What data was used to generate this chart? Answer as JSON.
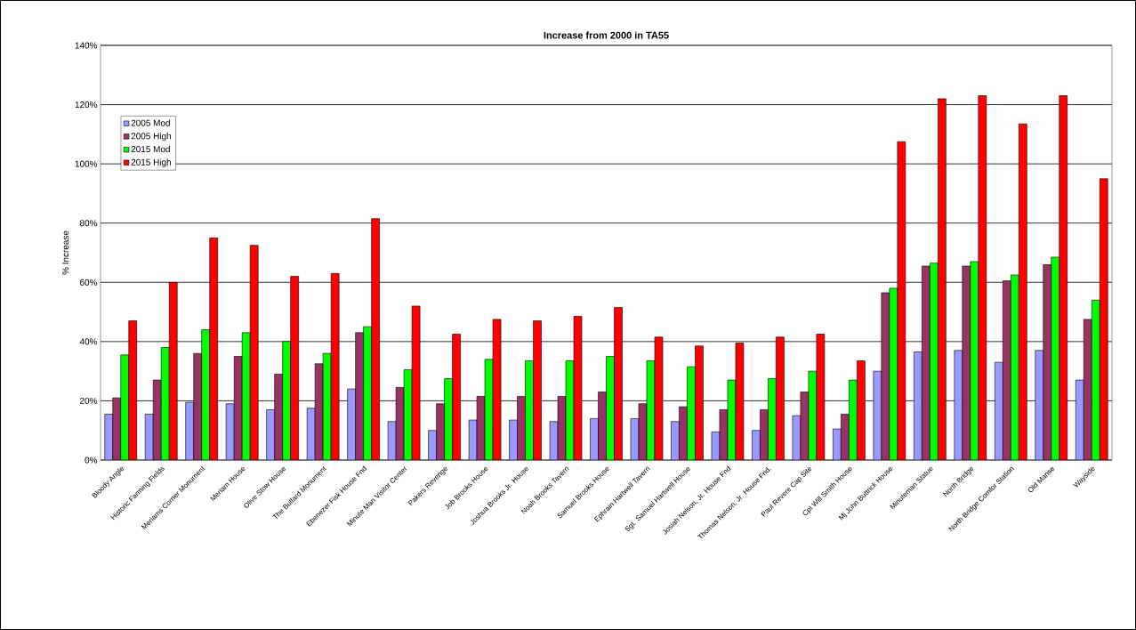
{
  "chart_data": {
    "type": "bar",
    "title": "Increase from 2000 in TA55",
    "ylabel": "% Increase",
    "categories": [
      "Bloody Angle",
      "Historic Farming Fields",
      "Meriams Corner Monument",
      "Meriam House",
      "Olive Stow House",
      "The Bulfard Monument",
      "Ebenezer Fisk House Fnd",
      "Minute Man Visitor Center",
      "Pakers Revenge",
      "Job Brooks House",
      "Joshua Brooks Jr. House",
      "Noah Brooks Tavern",
      "Samuel Brooks House",
      "Ephrain Hartwell Tavern",
      "Sgt. Samuel Hartwell House",
      "Josiah Nelson, Jr. House Fnd",
      "Thomas Nelson, Jr. House Fnd.",
      "Paul Revere Cap Site",
      "Cpt Will Smith House",
      "Mj John Buttrick House",
      "Minuteman Statue",
      "North Bridge",
      "North Bridge Comfor Station",
      "Old Manse",
      "Wayside"
    ],
    "series": [
      {
        "name": "2005 Mod",
        "color": "#9999ff",
        "values": [
          15.5,
          15.5,
          19.5,
          19,
          17,
          17.5,
          24,
          13,
          10,
          13.5,
          13.5,
          13,
          14,
          14,
          13,
          9.5,
          10,
          15,
          10.5,
          30,
          36.5,
          37,
          33,
          37,
          27
        ]
      },
      {
        "name": "2005 High",
        "color": "#993366",
        "values": [
          21,
          27,
          36,
          35,
          29,
          32.5,
          43,
          24.5,
          19,
          21.5,
          21.5,
          21.5,
          23,
          19,
          18,
          17,
          17,
          23,
          15.5,
          56.5,
          65.5,
          65.5,
          60.5,
          66,
          47.5
        ]
      },
      {
        "name": "2015 Mod",
        "color": "#00ff00",
        "values": [
          35.5,
          38,
          44,
          43,
          40,
          36,
          45,
          30.5,
          27.5,
          34,
          33.5,
          33.5,
          35,
          33.5,
          31.5,
          27,
          27.5,
          30,
          27,
          58,
          66.5,
          67,
          62.5,
          68.5,
          54
        ]
      },
      {
        "name": "2015 High",
        "color": "#ff0000",
        "values": [
          47,
          60,
          75,
          72.5,
          62,
          63,
          81.5,
          52,
          42.5,
          47.5,
          47,
          48.5,
          51.5,
          41.5,
          38.5,
          39.5,
          41.5,
          42.5,
          33.5,
          107.5,
          122,
          123,
          113.5,
          123,
          95
        ]
      }
    ],
    "ylim": [
      0,
      140
    ],
    "yticks": [
      {
        "value": 0,
        "label": "0%"
      },
      {
        "value": 20,
        "label": "20%"
      },
      {
        "value": 40,
        "label": "40%"
      },
      {
        "value": 60,
        "label": "60%"
      },
      {
        "value": 80,
        "label": "80%"
      },
      {
        "value": 100,
        "label": "100%"
      },
      {
        "value": 120,
        "label": "120%"
      },
      {
        "value": 140,
        "label": "140%"
      }
    ],
    "grid": "y",
    "legend": "top left"
  }
}
